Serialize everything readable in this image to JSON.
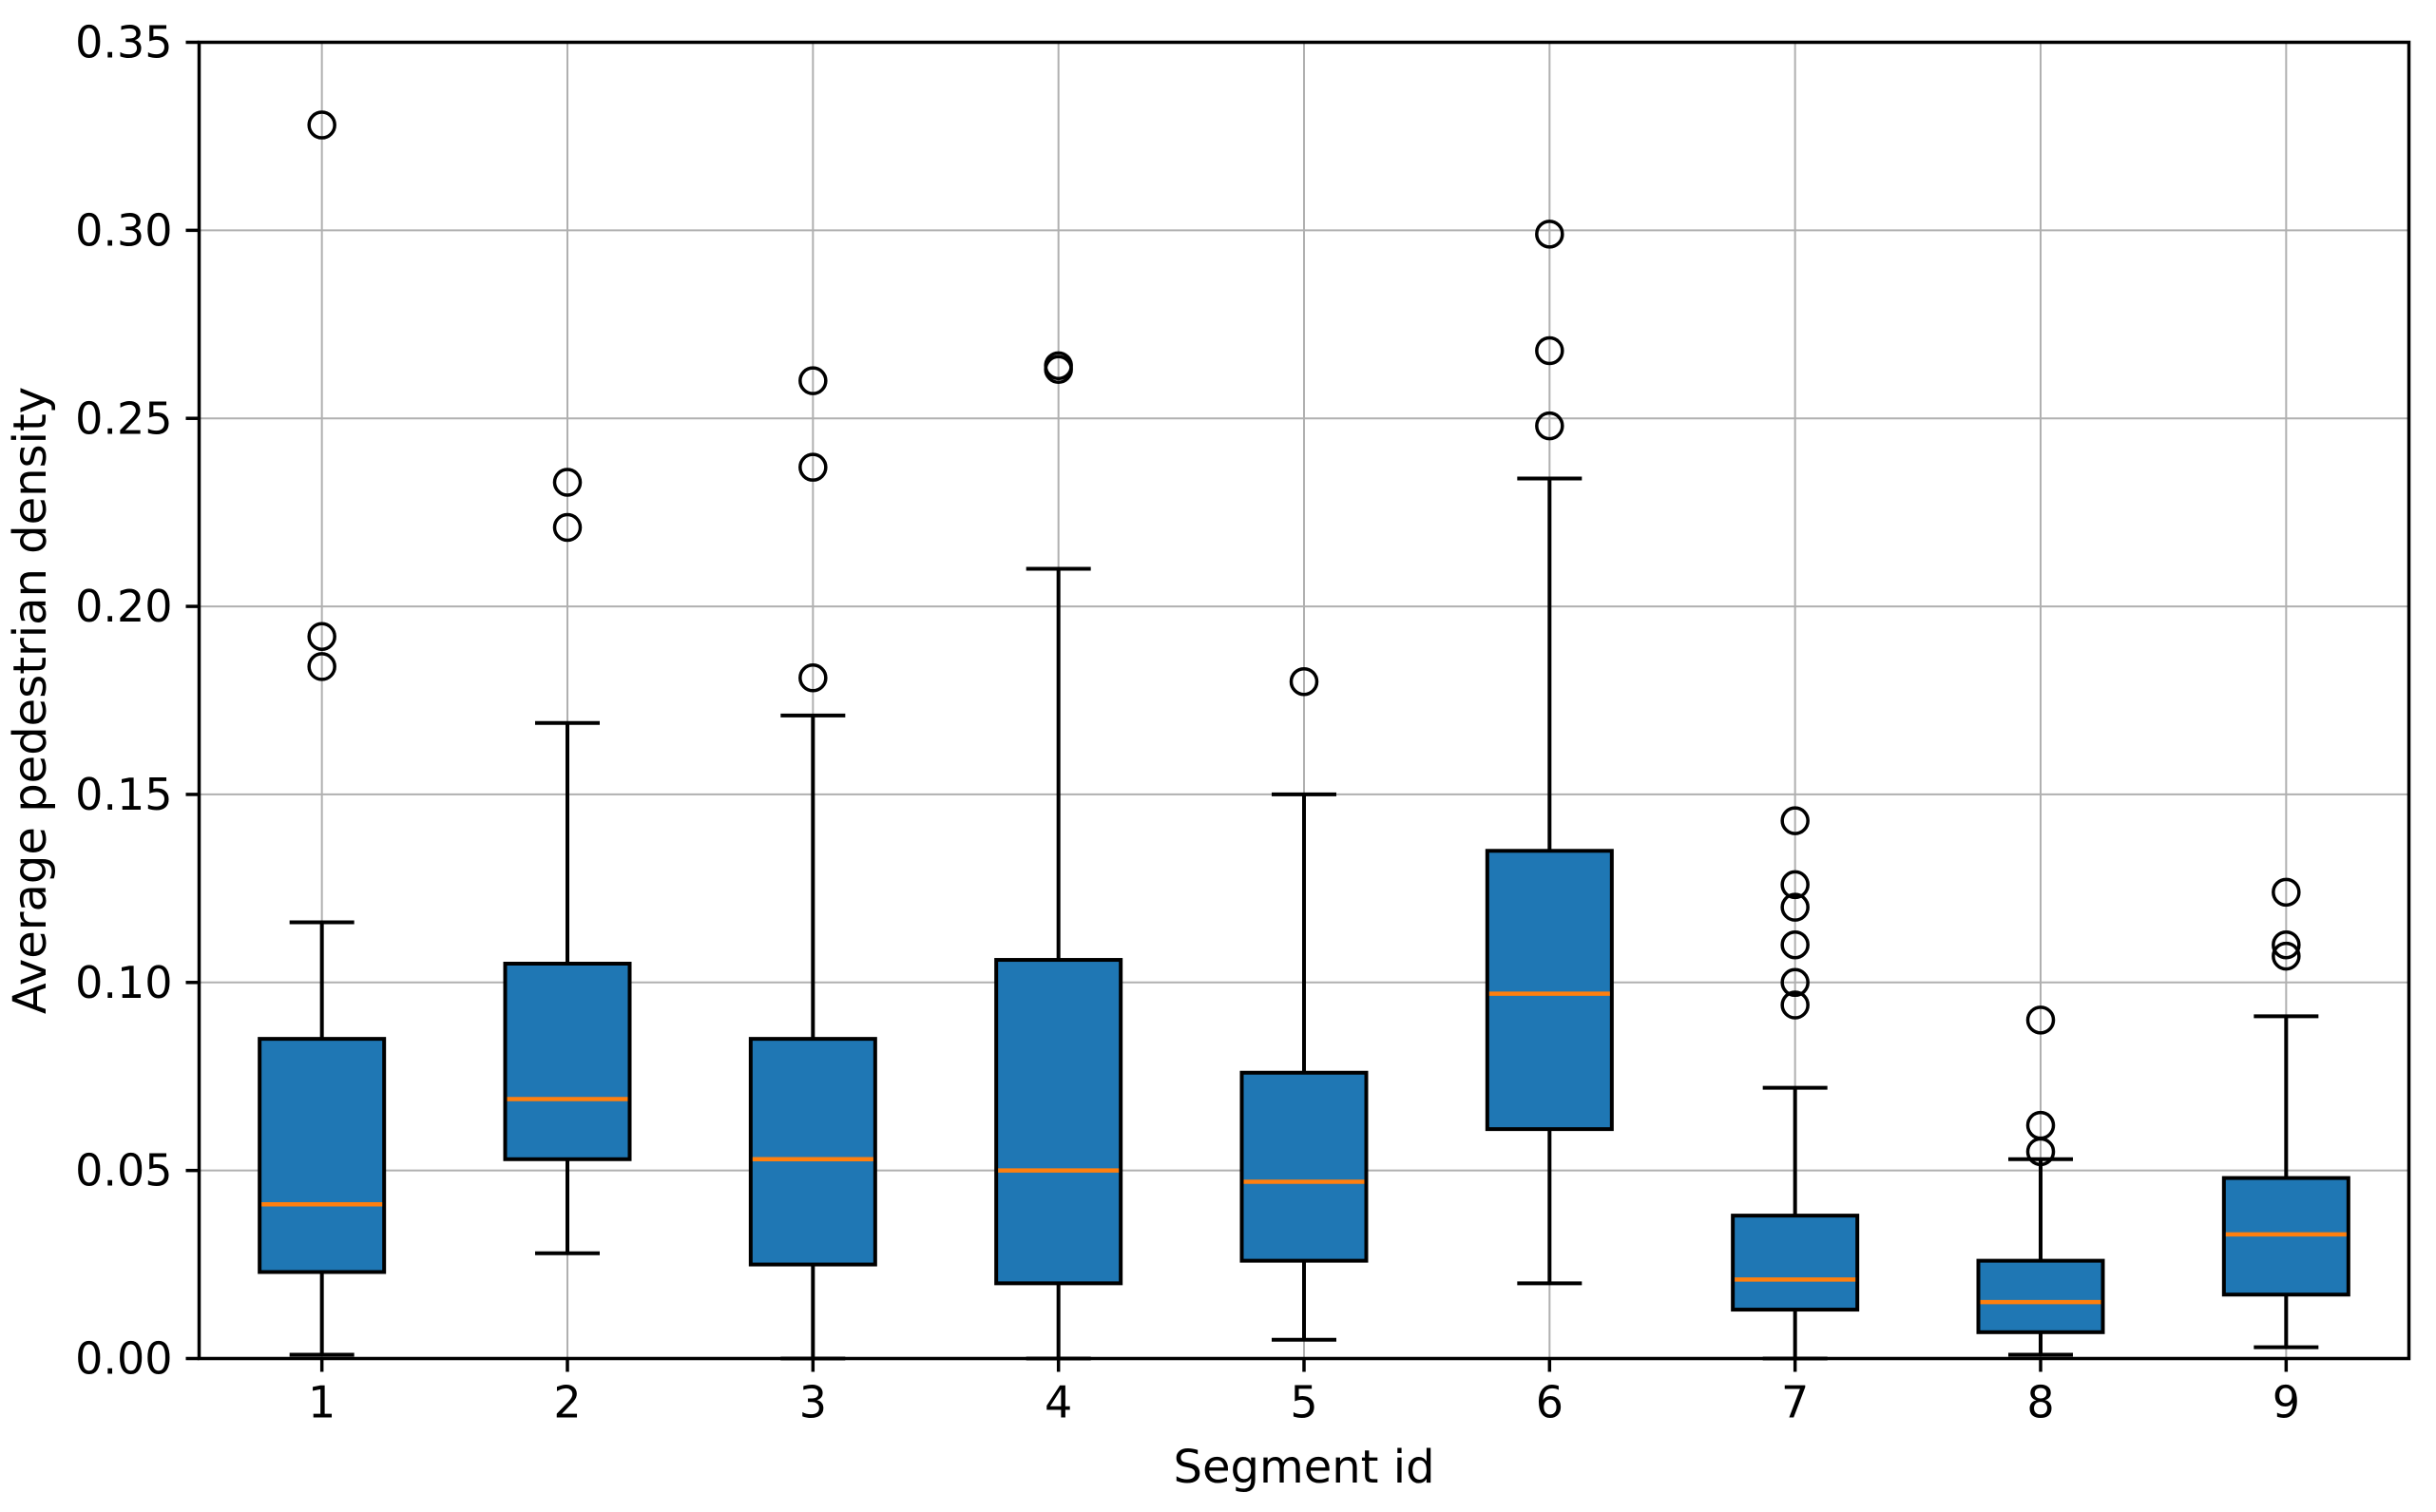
{
  "figure": {
    "background": "#ffffff"
  },
  "chart_data": {
    "type": "box",
    "title": "",
    "xlabel": "Segment id",
    "ylabel": "Average pedestrian density",
    "categories": [
      "1",
      "2",
      "3",
      "4",
      "5",
      "6",
      "7",
      "8",
      "9"
    ],
    "ylim": [
      0.0,
      0.35
    ],
    "ytick_labels": [
      "0.00",
      "0.05",
      "0.10",
      "0.15",
      "0.20",
      "0.25",
      "0.30",
      "0.35"
    ],
    "grid": "both",
    "legend_position": "none",
    "boxes": [
      {
        "segment": "1",
        "whislo": 0.001,
        "q1": 0.023,
        "med": 0.041,
        "q3": 0.085,
        "whishi": 0.116,
        "fliers": [
          0.184,
          0.192,
          0.328
        ]
      },
      {
        "segment": "2",
        "whislo": 0.028,
        "q1": 0.053,
        "med": 0.069,
        "q3": 0.105,
        "whishi": 0.169,
        "fliers": [
          0.221,
          0.233
        ]
      },
      {
        "segment": "3",
        "whislo": 0.0,
        "q1": 0.025,
        "med": 0.053,
        "q3": 0.085,
        "whishi": 0.171,
        "fliers": [
          0.181,
          0.237,
          0.26
        ]
      },
      {
        "segment": "4",
        "whislo": 0.0,
        "q1": 0.02,
        "med": 0.05,
        "q3": 0.106,
        "whishi": 0.21,
        "fliers": [
          0.263,
          0.264
        ]
      },
      {
        "segment": "5",
        "whislo": 0.005,
        "q1": 0.026,
        "med": 0.047,
        "q3": 0.076,
        "whishi": 0.15,
        "fliers": [
          0.18
        ]
      },
      {
        "segment": "6",
        "whislo": 0.02,
        "q1": 0.061,
        "med": 0.097,
        "q3": 0.135,
        "whishi": 0.234,
        "fliers": [
          0.248,
          0.268,
          0.299
        ]
      },
      {
        "segment": "7",
        "whislo": 0.0,
        "q1": 0.013,
        "med": 0.021,
        "q3": 0.038,
        "whishi": 0.072,
        "fliers": [
          0.094,
          0.1,
          0.11,
          0.12,
          0.126,
          0.143
        ]
      },
      {
        "segment": "8",
        "whislo": 0.001,
        "q1": 0.007,
        "med": 0.015,
        "q3": 0.026,
        "whishi": 0.053,
        "fliers": [
          0.055,
          0.062,
          0.09
        ]
      },
      {
        "segment": "9",
        "whislo": 0.003,
        "q1": 0.017,
        "med": 0.033,
        "q3": 0.048,
        "whishi": 0.091,
        "fliers": [
          0.107,
          0.11,
          0.124
        ]
      }
    ],
    "style": {
      "box_fill": "#1f77b4",
      "median_color": "#ff7f0e",
      "line_color": "#000000",
      "grid_color": "#b0b0b0",
      "background": "#ffffff"
    }
  }
}
